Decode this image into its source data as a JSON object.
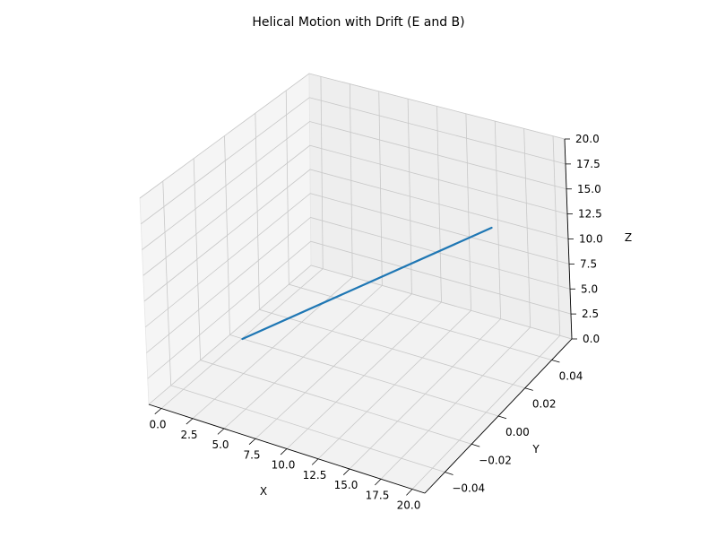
{
  "chart_data": {
    "type": "line",
    "projection": "3d",
    "title": "Helical Motion with Drift (E and B)",
    "xlabel": "X",
    "ylabel": "Y",
    "zlabel": "Z",
    "xlim": [
      -1,
      21
    ],
    "ylim": [
      -0.055,
      0.055
    ],
    "zlim": [
      0,
      20
    ],
    "xticks": [
      "0.0",
      "2.5",
      "5.0",
      "7.5",
      "10.0",
      "12.5",
      "15.0",
      "17.5",
      "20.0"
    ],
    "yticks": [
      "−0.04",
      "−0.02",
      "0.00",
      "0.02",
      "0.04"
    ],
    "zticks": [
      "0.0",
      "2.5",
      "5.0",
      "7.5",
      "10.0",
      "12.5",
      "15.0",
      "17.5",
      "20.0"
    ],
    "grid": true,
    "series": [
      {
        "color": "#1f77b4",
        "x": [
          0,
          20
        ],
        "y": [
          0,
          0
        ],
        "z": [
          0,
          20
        ]
      }
    ]
  }
}
